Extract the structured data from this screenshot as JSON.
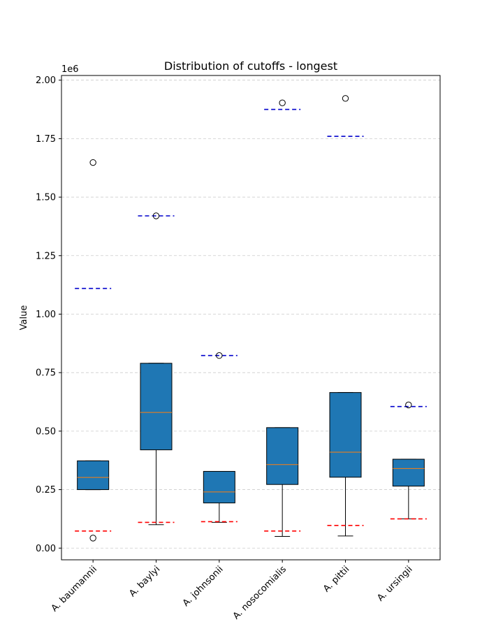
{
  "chart_data": {
    "type": "box",
    "title": "Distribution of cutoffs - longest",
    "xlabel": "",
    "ylabel": "Value",
    "y_offset_label": "1e6",
    "ylim": [
      -50000,
      2020000
    ],
    "yticks": [
      0,
      250000,
      500000,
      750000,
      1000000,
      1250000,
      1500000,
      1750000,
      2000000
    ],
    "ytick_labels": [
      "0.00",
      "0.25",
      "0.50",
      "0.75",
      "1.00",
      "1.25",
      "1.50",
      "1.75",
      "2.00"
    ],
    "ytick_scale": 1000000,
    "grid": "y-dashed",
    "categories": [
      "A. baumannii",
      "A. baylyi",
      "A. johnsonii",
      "A. nosocomialis",
      "A. pittii",
      "A. ursingii"
    ],
    "boxes": [
      {
        "category": "A. baumannii",
        "whisker_low": 250000,
        "q1": 250000,
        "median": 302000,
        "q3": 373000,
        "whisker_high": 373000,
        "outliers": [
          1648000,
          43000
        ],
        "red_line": 73000,
        "blue_line": 1110000
      },
      {
        "category": "A. baylyi",
        "whisker_low": 100000,
        "q1": 420000,
        "median": 580000,
        "q3": 790000,
        "whisker_high": 790000,
        "outliers": [
          1420000
        ],
        "red_line": 110000,
        "blue_line": 1420000
      },
      {
        "category": "A. johnsonii",
        "whisker_low": 110000,
        "q1": 193000,
        "median": 240000,
        "q3": 328000,
        "whisker_high": 328000,
        "outliers": [
          823000
        ],
        "red_line": 113000,
        "blue_line": 823000
      },
      {
        "category": "A. nosocomialis",
        "whisker_low": 50000,
        "q1": 272000,
        "median": 357000,
        "q3": 515000,
        "whisker_high": 515000,
        "outliers": [
          1903000
        ],
        "red_line": 73000,
        "blue_line": 1875000
      },
      {
        "category": "A. pittii",
        "whisker_low": 52000,
        "q1": 303000,
        "median": 410000,
        "q3": 665000,
        "whisker_high": 665000,
        "outliers": [
          1922000
        ],
        "red_line": 97000,
        "blue_line": 1760000
      },
      {
        "category": "A. ursingii",
        "whisker_low": 125000,
        "q1": 265000,
        "median": 340000,
        "q3": 380000,
        "whisker_high": 380000,
        "outliers": [
          612000
        ],
        "red_line": 125000,
        "blue_line": 605000
      }
    ],
    "colors": {
      "box_fill": "#1f77b4",
      "median": "#ff7f0e",
      "red_line": "#ff0000",
      "blue_line": "#0000cc",
      "grid": "#cccccc"
    }
  }
}
